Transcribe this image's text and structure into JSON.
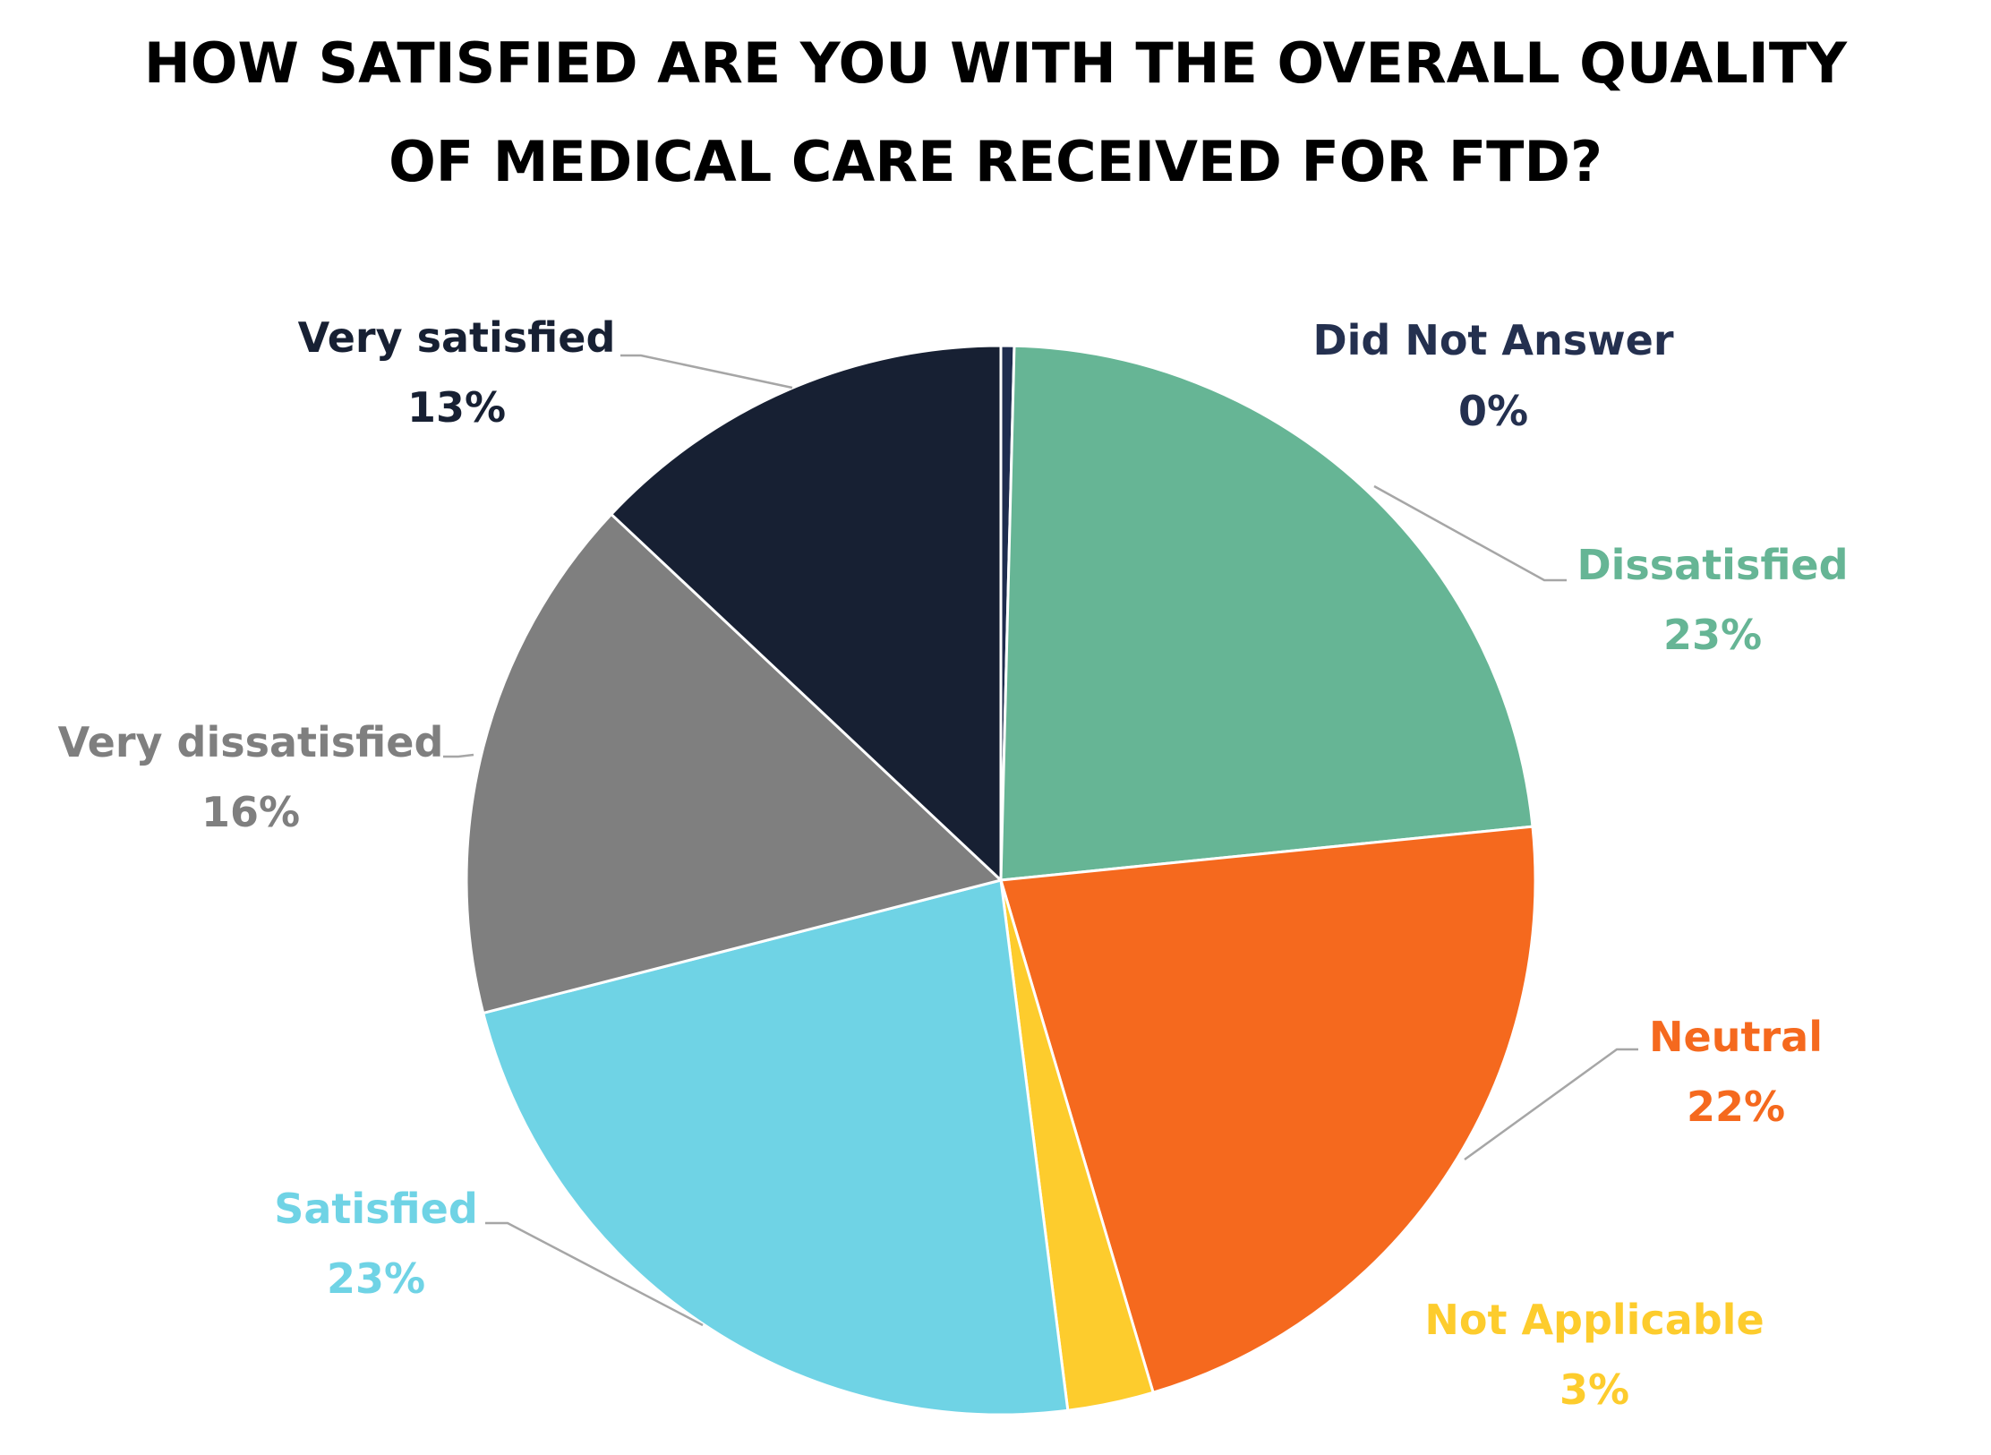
{
  "chart_data": {
    "type": "pie",
    "title": "HOW SATISFIED ARE YOU WITH THE OVERALL QUALITY OF MEDICAL CARE RECEIVED FOR FTD?",
    "title_lines": [
      "HOW SATISFIED ARE YOU WITH THE OVERALL QUALITY",
      "OF MEDICAL CARE RECEIVED FOR FTD?"
    ],
    "slices": [
      {
        "key": "did-not-answer",
        "label": "Did Not Answer",
        "value": 0.4,
        "display": "0%",
        "color": "#1f2d4f",
        "label_color": "#24304f"
      },
      {
        "key": "dissatisfied",
        "label": "Dissatisfied",
        "value": 23,
        "display": "23%",
        "color": "#66b595",
        "label_color": "#66b595"
      },
      {
        "key": "neutral",
        "label": "Neutral",
        "value": 22,
        "display": "22%",
        "color": "#f5691e",
        "label_color": "#f5691e"
      },
      {
        "key": "not-applicable",
        "label": "Not Applicable",
        "value": 2.6,
        "display": "3%",
        "color": "#fdcc2d",
        "label_color": "#fdcc2d"
      },
      {
        "key": "satisfied",
        "label": "Satisfied",
        "value": 23,
        "display": "23%",
        "color": "#6fd3e5",
        "label_color": "#6fd3e5"
      },
      {
        "key": "very-dissatisfied",
        "label": "Very dissatisfied",
        "value": 16,
        "display": "16%",
        "color": "#7f7f7f",
        "label_color": "#7f7f7f"
      },
      {
        "key": "very-satisfied",
        "label": "Very satisfied",
        "value": 13,
        "display": "13%",
        "color": "#172033",
        "label_color": "#172033"
      }
    ],
    "legend": "none",
    "data_labels": "outside with leader lines"
  }
}
